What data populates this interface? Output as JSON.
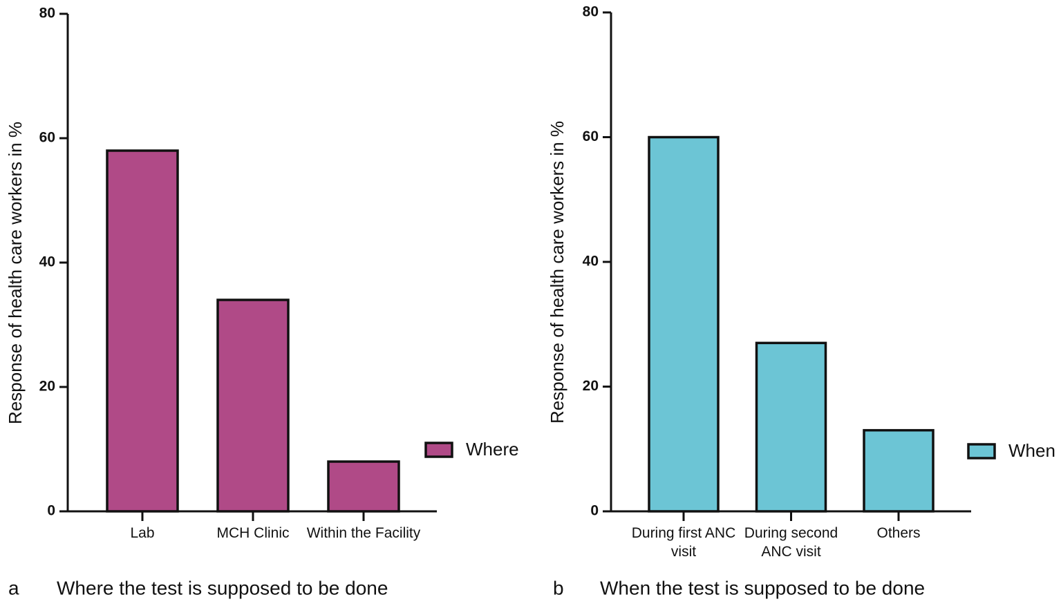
{
  "chart_data": [
    {
      "type": "bar",
      "panel_label": "a",
      "title": "Where the test is supposed to be done",
      "y_label": "Response of health care workers in %",
      "categories": [
        "Lab",
        "MCH Clinic",
        "Within the Facility"
      ],
      "series": [
        {
          "name": "Where",
          "color": "#b04a87",
          "values": [
            58,
            34,
            8
          ]
        }
      ],
      "ylim": [
        0,
        80
      ],
      "yticks": [
        0,
        20,
        40,
        60,
        80
      ],
      "legend": "right"
    },
    {
      "type": "bar",
      "panel_label": "b",
      "title": "When the test is supposed to be done",
      "y_label": "Response of health care workers in %",
      "categories": [
        "During first ANC visit",
        "During second ANC visit",
        "Others"
      ],
      "series": [
        {
          "name": "When",
          "color": "#6cc5d5",
          "values": [
            60,
            27,
            13
          ]
        }
      ],
      "ylim": [
        0,
        80
      ],
      "yticks": [
        0,
        20,
        40,
        60,
        80
      ],
      "legend": "right"
    }
  ]
}
